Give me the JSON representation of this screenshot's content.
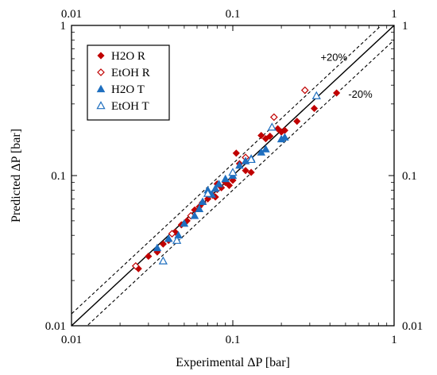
{
  "chart_data": {
    "type": "scatter",
    "xlabel": "Experimental ΔP [bar]",
    "ylabel": "Predicted ΔP [bar]",
    "xscale": "log",
    "yscale": "log",
    "xlim": [
      0.01,
      1
    ],
    "ylim": [
      0.01,
      1
    ],
    "ticks": [
      0.01,
      0.1,
      1
    ],
    "tick_labels": [
      "0.01",
      "0.1",
      "1"
    ],
    "grid": false,
    "legend_position": "top-left",
    "annotations": [
      {
        "text": "+20%",
        "x": 0.35,
        "y": 0.58
      },
      {
        "text": "-20%",
        "x": 0.52,
        "y": 0.33
      }
    ],
    "reference_lines": [
      {
        "kind": "parity",
        "factor": 1.0,
        "style": "solid"
      },
      {
        "kind": "upper",
        "factor": 1.2,
        "style": "dashed"
      },
      {
        "kind": "lower",
        "factor": 0.8,
        "style": "dashed"
      }
    ],
    "series": [
      {
        "name": "H2O R",
        "marker": "diamond-filled",
        "color": "#C00000",
        "points": [
          [
            0.026,
            0.024
          ],
          [
            0.03,
            0.029
          ],
          [
            0.034,
            0.031
          ],
          [
            0.037,
            0.035
          ],
          [
            0.04,
            0.037
          ],
          [
            0.044,
            0.042
          ],
          [
            0.048,
            0.047
          ],
          [
            0.052,
            0.05
          ],
          [
            0.055,
            0.054
          ],
          [
            0.058,
            0.059
          ],
          [
            0.062,
            0.062
          ],
          [
            0.065,
            0.066
          ],
          [
            0.07,
            0.07
          ],
          [
            0.075,
            0.074
          ],
          [
            0.078,
            0.072
          ],
          [
            0.08,
            0.088
          ],
          [
            0.085,
            0.083
          ],
          [
            0.09,
            0.09
          ],
          [
            0.095,
            0.086
          ],
          [
            0.1,
            0.093
          ],
          [
            0.105,
            0.141
          ],
          [
            0.11,
            0.12
          ],
          [
            0.12,
            0.108
          ],
          [
            0.13,
            0.105
          ],
          [
            0.15,
            0.185
          ],
          [
            0.16,
            0.176
          ],
          [
            0.17,
            0.183
          ],
          [
            0.19,
            0.205
          ],
          [
            0.2,
            0.195
          ],
          [
            0.21,
            0.2
          ],
          [
            0.25,
            0.23
          ],
          [
            0.32,
            0.28
          ],
          [
            0.44,
            0.355
          ]
        ]
      },
      {
        "name": "EtOH R",
        "marker": "diamond-open",
        "color": "#C00000",
        "points": [
          [
            0.025,
            0.025
          ],
          [
            0.042,
            0.041
          ],
          [
            0.055,
            0.054
          ],
          [
            0.065,
            0.066
          ],
          [
            0.08,
            0.081
          ],
          [
            0.12,
            0.132
          ],
          [
            0.18,
            0.245
          ],
          [
            0.28,
            0.37
          ]
        ]
      },
      {
        "name": "H2O T",
        "marker": "triangle-filled",
        "color": "#1F6FBF",
        "points": [
          [
            0.034,
            0.033
          ],
          [
            0.04,
            0.038
          ],
          [
            0.046,
            0.04
          ],
          [
            0.05,
            0.048
          ],
          [
            0.058,
            0.054
          ],
          [
            0.062,
            0.06
          ],
          [
            0.065,
            0.067
          ],
          [
            0.07,
            0.08
          ],
          [
            0.074,
            0.075
          ],
          [
            0.078,
            0.082
          ],
          [
            0.082,
            0.088
          ],
          [
            0.09,
            0.095
          ],
          [
            0.1,
            0.1
          ],
          [
            0.11,
            0.117
          ],
          [
            0.12,
            0.125
          ],
          [
            0.13,
            0.13
          ],
          [
            0.15,
            0.143
          ],
          [
            0.16,
            0.15
          ],
          [
            0.2,
            0.175
          ],
          [
            0.21,
            0.18
          ]
        ]
      },
      {
        "name": "EtOH T",
        "marker": "triangle-open",
        "color": "#1F6FBF",
        "points": [
          [
            0.037,
            0.027
          ],
          [
            0.045,
            0.037
          ],
          [
            0.07,
            0.076
          ],
          [
            0.1,
            0.105
          ],
          [
            0.13,
            0.128
          ],
          [
            0.175,
            0.21
          ],
          [
            0.33,
            0.34
          ]
        ]
      }
    ]
  }
}
